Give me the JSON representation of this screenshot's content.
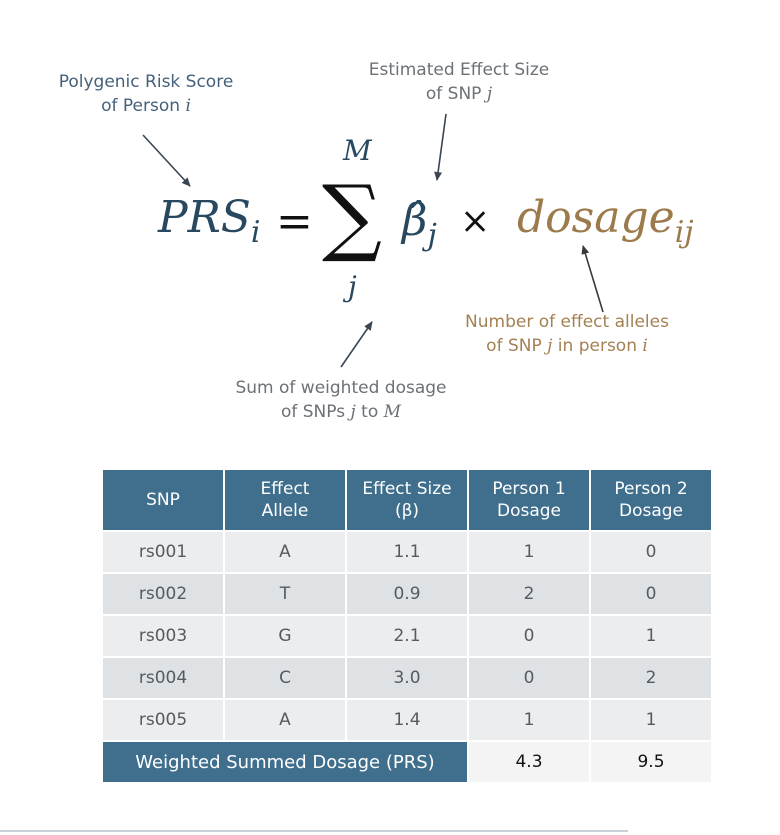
{
  "annotations": {
    "prs_label": {
      "line1": "Polygenic Risk Score",
      "line2_text": "of Person ",
      "line2_var": "i"
    },
    "effect_label": {
      "line1": "Estimated Effect Size",
      "line2_text": "of SNP ",
      "line2_var": "j"
    },
    "alleles_label": {
      "line1": "Number of effect alleles",
      "line2_a": "of SNP ",
      "line2_var1": "j",
      "line2_b": " in person ",
      "line2_var2": "i"
    },
    "sum_label": {
      "line1": "Sum of weighted dosage",
      "line2_a": "of SNPs ",
      "line2_var1": "j",
      "line2_b": " to ",
      "line2_var2": "M"
    }
  },
  "formula": {
    "prs": "PRS",
    "prs_sub": "i",
    "equals": "=",
    "sigma": "∑",
    "upper": "M",
    "lower": "j",
    "beta": "β̂",
    "beta_sub": "j",
    "times": "×",
    "dosage": "dosage",
    "dosage_sub": "ij"
  },
  "table": {
    "headers": [
      {
        "line1": "SNP",
        "line2": ""
      },
      {
        "line1": "Effect",
        "line2": "Allele"
      },
      {
        "line1": "Effect Size",
        "line2": "(β)"
      },
      {
        "line1": "Person 1",
        "line2": "Dosage"
      },
      {
        "line1": "Person 2",
        "line2": "Dosage"
      }
    ],
    "rows": [
      [
        "rs001",
        "A",
        "1.1",
        "1",
        "0"
      ],
      [
        "rs002",
        "T",
        "0.9",
        "2",
        "0"
      ],
      [
        "rs003",
        "G",
        "2.1",
        "0",
        "1"
      ],
      [
        "rs004",
        "C",
        "3.0",
        "0",
        "2"
      ],
      [
        "rs005",
        "A",
        "1.4",
        "1",
        "1"
      ]
    ],
    "total_label": "Weighted Summed Dosage (PRS)",
    "total_p1": "4.3",
    "total_p2": "9.5"
  },
  "colors": {
    "header_blue": "#3f6f8d",
    "formula_navy": "#28485f",
    "dosage_gold": "#9c7a4b",
    "annotation_blue": "#45617a",
    "annotation_gray": "#6b7177",
    "annotation_brown": "#a48153"
  }
}
